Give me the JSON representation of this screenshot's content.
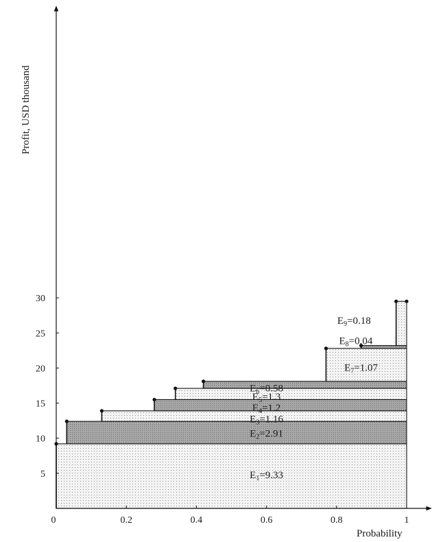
{
  "chart_data": {
    "type": "area",
    "title": "",
    "xlabel": "Probability",
    "ylabel": "Profit, USD thousand",
    "xlim": [
      0,
      1
    ],
    "ylim": [
      0,
      33
    ],
    "xticks": [
      0,
      0.2,
      0.4,
      0.6,
      0.8,
      1
    ],
    "xtick_labels": [
      "0",
      "0.2",
      "0.4",
      "0.6",
      "0.8",
      "1"
    ],
    "yticks": [
      5,
      10,
      15,
      20,
      25,
      30
    ],
    "ytick_labels": [
      "5",
      "10",
      "15",
      "20",
      "25",
      "30"
    ],
    "grid": false,
    "legend": "none",
    "fill_styles": {
      "light": {
        "base": "#f4f4f4",
        "dot": "#8a8a8a"
      },
      "dark": {
        "base": "#a8a8a8",
        "dot": "#6a6a6a"
      }
    },
    "bands": [
      {
        "x_start": 0.0,
        "y_bottom": 0.0,
        "y_top": 9.2,
        "fill": "light",
        "label_letter": "E",
        "label_sub": "1",
        "label_value": "=9.33",
        "label_x": 0.6,
        "label_y": 4.8
      },
      {
        "x_start": 0.03,
        "y_bottom": 9.2,
        "y_top": 12.4,
        "fill": "dark",
        "label_letter": "E",
        "label_sub": "2",
        "label_value": "=2.91",
        "label_x": 0.6,
        "label_y": 10.7
      },
      {
        "x_start": 0.13,
        "y_bottom": 12.4,
        "y_top": 13.9,
        "fill": "light",
        "label_letter": "E",
        "label_sub": "3",
        "label_value": "=1.16",
        "label_x": 0.6,
        "label_y": 12.75
      },
      {
        "x_start": 0.28,
        "y_bottom": 13.9,
        "y_top": 15.5,
        "fill": "dark",
        "label_letter": "E",
        "label_sub": "4",
        "label_value": "=1.2",
        "label_x": 0.6,
        "label_y": 14.35
      },
      {
        "x_start": 0.34,
        "y_bottom": 15.5,
        "y_top": 17.1,
        "fill": "light",
        "label_letter": "E",
        "label_sub": "5",
        "label_value": "=1.3",
        "label_x": 0.6,
        "label_y": 15.95
      },
      {
        "x_start": 0.42,
        "y_bottom": 17.1,
        "y_top": 18.1,
        "fill": "dark",
        "label_letter": "E",
        "label_sub": "6",
        "label_value": "=0.58",
        "label_x": 0.6,
        "label_y": 17.15
      },
      {
        "x_start": 0.77,
        "y_bottom": 18.1,
        "y_top": 22.8,
        "fill": "light",
        "label_letter": "E",
        "label_sub": "7",
        "label_value": "=1.07",
        "label_x": 0.87,
        "label_y": 20.1
      },
      {
        "x_start": 0.87,
        "y_bottom": 22.8,
        "y_top": 23.2,
        "fill": "dark",
        "label_letter": "E",
        "label_sub": "8",
        "label_value": "=0.04",
        "label_x": 0.855,
        "label_y": 23.9
      },
      {
        "x_start": 0.97,
        "y_bottom": 23.2,
        "y_top": 29.5,
        "fill": "light",
        "label_letter": "E",
        "label_sub": "9",
        "label_value": "=0.18",
        "label_x": 0.85,
        "label_y": 26.8
      }
    ]
  }
}
